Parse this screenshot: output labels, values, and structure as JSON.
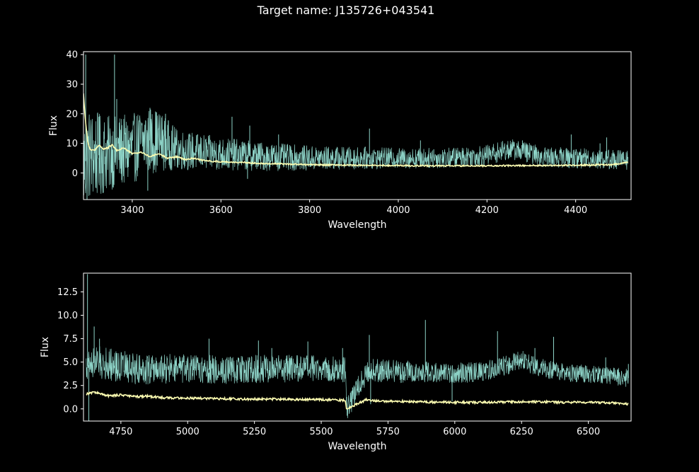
{
  "figure": {
    "suptitle": "Target name: J135726+043541",
    "background": "#000000",
    "axes_color": "#ffffff",
    "flux_color": "#8dd3c7",
    "error_color": "#ffffb3"
  },
  "chart_data": [
    {
      "type": "line",
      "xlabel": "Wavelength",
      "ylabel": "Flux",
      "xlim": [
        3290,
        4525
      ],
      "ylim": [
        -9,
        41
      ],
      "xticks": [
        3400,
        3600,
        3800,
        4000,
        4200,
        4400
      ],
      "yticks": [
        0,
        10,
        20,
        30,
        40
      ],
      "ytick_labels": [
        "0",
        "10",
        "20",
        "30",
        "40"
      ],
      "series": [
        {
          "role": "flux",
          "points": [
            [
              3290,
              2
            ],
            [
              3300,
              6
            ],
            [
              3330,
              6
            ],
            [
              3360,
              7
            ],
            [
              3400,
              8
            ],
            [
              3430,
              11
            ],
            [
              3460,
              11
            ],
            [
              3500,
              8
            ],
            [
              3550,
              7
            ],
            [
              3600,
              6.5
            ],
            [
              3700,
              5.5
            ],
            [
              3800,
              5
            ],
            [
              3900,
              5
            ],
            [
              4000,
              5
            ],
            [
              4100,
              5
            ],
            [
              4200,
              6
            ],
            [
              4250,
              8
            ],
            [
              4280,
              7.5
            ],
            [
              4320,
              5.5
            ],
            [
              4400,
              5
            ],
            [
              4500,
              4.5
            ],
            [
              4518,
              4.5
            ]
          ],
          "noise": [
            [
              3290,
              12
            ],
            [
              3350,
              9
            ],
            [
              3450,
              8
            ],
            [
              3500,
              5
            ],
            [
              3600,
              4
            ],
            [
              3800,
              3
            ],
            [
              4000,
              2.5
            ],
            [
              4200,
              2.5
            ],
            [
              4500,
              2.5
            ]
          ],
          "spikes": [
            [
              3295,
              40
            ],
            [
              3298,
              -9
            ],
            [
              3325,
              19
            ],
            [
              3360,
              40
            ],
            [
              3365,
              25
            ],
            [
              3435,
              -6
            ],
            [
              3440,
              22
            ],
            [
              3475,
              20
            ],
            [
              3625,
              19
            ],
            [
              3660,
              -2
            ],
            [
              3665,
              16
            ],
            [
              3730,
              13
            ],
            [
              3935,
              15
            ],
            [
              4050,
              11
            ],
            [
              4080,
              8
            ],
            [
              4280,
              11
            ],
            [
              4390,
              13
            ],
            [
              4455,
              10
            ],
            [
              4470,
              12
            ],
            [
              4505,
              6
            ]
          ]
        },
        {
          "role": "error",
          "points": [
            [
              3290,
              27
            ],
            [
              3293,
              20
            ],
            [
              3297,
              14
            ],
            [
              3300,
              10
            ],
            [
              3305,
              8
            ],
            [
              3315,
              7.5
            ],
            [
              3325,
              9.5
            ],
            [
              3335,
              8
            ],
            [
              3345,
              8.5
            ],
            [
              3355,
              9.5
            ],
            [
              3365,
              7.5
            ],
            [
              3380,
              8.5
            ],
            [
              3400,
              6.5
            ],
            [
              3420,
              7
            ],
            [
              3440,
              5.5
            ],
            [
              3460,
              6.5
            ],
            [
              3480,
              5
            ],
            [
              3500,
              5.5
            ],
            [
              3520,
              4.5
            ],
            [
              3540,
              5
            ],
            [
              3560,
              4.2
            ],
            [
              3600,
              3.8
            ],
            [
              3650,
              3.5
            ],
            [
              3700,
              3.2
            ],
            [
              3800,
              2.8
            ],
            [
              3900,
              2.6
            ],
            [
              4000,
              2.5
            ],
            [
              4100,
              2.4
            ],
            [
              4200,
              2.4
            ],
            [
              4300,
              2.5
            ],
            [
              4400,
              2.6
            ],
            [
              4480,
              2.8
            ],
            [
              4500,
              3.2
            ],
            [
              4518,
              3.6
            ]
          ]
        }
      ]
    },
    {
      "type": "line",
      "xlabel": "Wavelength",
      "ylabel": "Flux",
      "xlim": [
        4610,
        6660
      ],
      "ylim": [
        -1.3,
        14.5
      ],
      "xticks": [
        4750,
        5000,
        5250,
        5500,
        5750,
        6000,
        6250,
        6500
      ],
      "yticks": [
        0,
        2.5,
        5,
        7.5,
        10,
        12.5
      ],
      "ytick_labels": [
        "0.0",
        "2.5",
        "5.0",
        "7.5",
        "10.0",
        "12.5"
      ],
      "series": [
        {
          "role": "flux",
          "points": [
            [
              4620,
              4.5
            ],
            [
              4650,
              5.0
            ],
            [
              4700,
              4.8
            ],
            [
              4800,
              4.3
            ],
            [
              5000,
              4.2
            ],
            [
              5200,
              4.2
            ],
            [
              5300,
              4.3
            ],
            [
              5400,
              4.3
            ],
            [
              5500,
              4.3
            ],
            [
              5590,
              4.2
            ],
            [
              5595,
              0
            ],
            [
              5670,
              4.0
            ],
            [
              5700,
              4.1
            ],
            [
              5800,
              4.0
            ],
            [
              5900,
              3.9
            ],
            [
              6000,
              3.8
            ],
            [
              6100,
              4.0
            ],
            [
              6200,
              4.7
            ],
            [
              6250,
              5.3
            ],
            [
              6280,
              4.8
            ],
            [
              6350,
              4.2
            ],
            [
              6450,
              3.8
            ],
            [
              6550,
              3.6
            ],
            [
              6650,
              3.3
            ]
          ],
          "noise": [
            [
              4620,
              1.3
            ],
            [
              4800,
              1.2
            ],
            [
              5200,
              1.1
            ],
            [
              5590,
              1.0
            ],
            [
              5680,
              0.9
            ],
            [
              6000,
              0.8
            ],
            [
              6300,
              0.7
            ],
            [
              6650,
              0.7
            ]
          ],
          "spikes": [
            [
              4625,
              14.4
            ],
            [
              4630,
              -1.3
            ],
            [
              4650,
              8.8
            ],
            [
              4670,
              7.5
            ],
            [
              4865,
              5.5
            ],
            [
              5080,
              7.5
            ],
            [
              5265,
              7.3
            ],
            [
              5315,
              6.5
            ],
            [
              5450,
              7.2
            ],
            [
              5580,
              6.5
            ],
            [
              5680,
              7.9
            ],
            [
              5685,
              0.5
            ],
            [
              5890,
              9.5
            ],
            [
              5990,
              0.8
            ],
            [
              6160,
              8.3
            ],
            [
              6300,
              6.5
            ],
            [
              6370,
              7.7
            ],
            [
              6565,
              5.5
            ],
            [
              6650,
              4.8
            ]
          ]
        },
        {
          "role": "error",
          "points": [
            [
              4620,
              1.6
            ],
            [
              4650,
              1.8
            ],
            [
              4700,
              1.4
            ],
            [
              4750,
              1.5
            ],
            [
              4800,
              1.3
            ],
            [
              4850,
              1.35
            ],
            [
              4900,
              1.2
            ],
            [
              5000,
              1.15
            ],
            [
              5100,
              1.1
            ],
            [
              5200,
              1.05
            ],
            [
              5300,
              1.05
            ],
            [
              5400,
              1.0
            ],
            [
              5500,
              1.0
            ],
            [
              5590,
              0.9
            ],
            [
              5595,
              0
            ],
            [
              5670,
              1.0
            ],
            [
              5700,
              0.85
            ],
            [
              5800,
              0.8
            ],
            [
              5900,
              0.75
            ],
            [
              6000,
              0.7
            ],
            [
              6100,
              0.7
            ],
            [
              6200,
              0.75
            ],
            [
              6300,
              0.75
            ],
            [
              6400,
              0.7
            ],
            [
              6500,
              0.7
            ],
            [
              6600,
              0.65
            ],
            [
              6650,
              0.5
            ]
          ]
        }
      ]
    }
  ]
}
